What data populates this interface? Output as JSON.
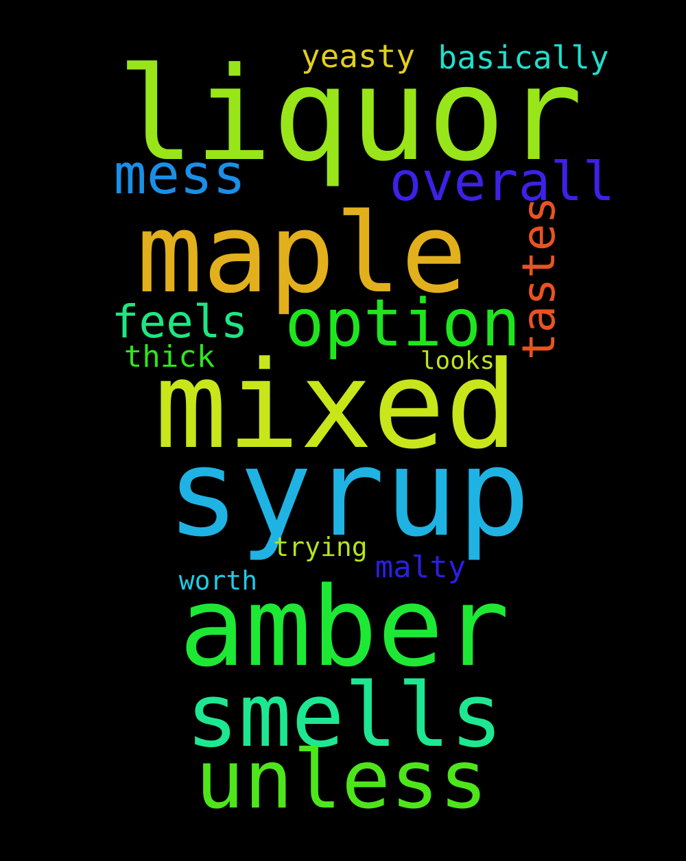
{
  "background": "#000000",
  "words": [
    {
      "key": "liquor",
      "text": "liquor",
      "color": "#98e51a"
    },
    {
      "key": "maple",
      "text": "maple",
      "color": "#e2b01c"
    },
    {
      "key": "mixed",
      "text": "mixed",
      "color": "#c8e61a"
    },
    {
      "key": "syrup",
      "text": "syrup",
      "color": "#1fb3e4"
    },
    {
      "key": "amber",
      "text": "amber",
      "color": "#1de935"
    },
    {
      "key": "smells",
      "text": "smells",
      "color": "#1de891"
    },
    {
      "key": "unless",
      "text": "unless",
      "color": "#4ee61b"
    },
    {
      "key": "option",
      "text": "option",
      "color": "#1fe51e"
    },
    {
      "key": "mess",
      "text": "mess",
      "color": "#1b8fe6"
    },
    {
      "key": "overall",
      "text": "overall",
      "color": "#3c21e6"
    },
    {
      "key": "tastes",
      "text": "tastes",
      "color": "#e95322"
    },
    {
      "key": "feels",
      "text": "feels",
      "color": "#1ee681"
    },
    {
      "key": "yeasty",
      "text": "yeasty",
      "color": "#e2cf1c"
    },
    {
      "key": "basically",
      "text": "basically",
      "color": "#1fdfcc"
    },
    {
      "key": "thick",
      "text": "thick",
      "color": "#2ee61d"
    },
    {
      "key": "looks",
      "text": "looks",
      "color": "#bde61c"
    },
    {
      "key": "malty",
      "text": "malty",
      "color": "#2a1fe6"
    },
    {
      "key": "trying",
      "text": "trying",
      "color": "#b3e61c"
    },
    {
      "key": "worth",
      "text": "worth",
      "color": "#1fcae6"
    }
  ]
}
